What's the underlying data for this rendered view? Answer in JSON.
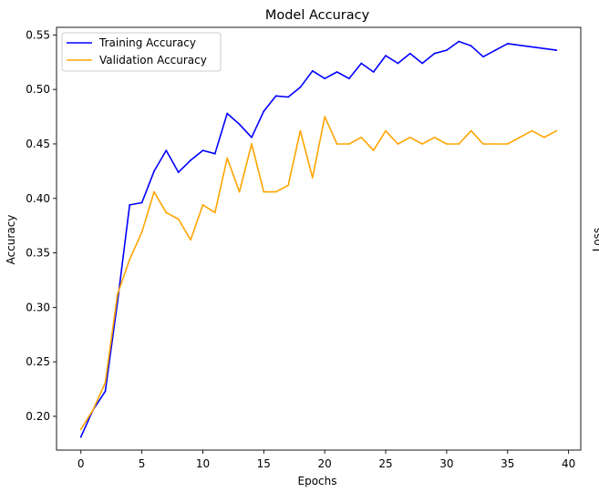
{
  "figure": {
    "cutoff_label": "Loss"
  },
  "chart_data": {
    "type": "line",
    "title": "Model Accuracy",
    "xlabel": "Epochs",
    "ylabel": "Accuracy",
    "xlim": [
      -2,
      41
    ],
    "ylim": [
      0.169,
      0.557
    ],
    "xticks": [
      0,
      5,
      10,
      15,
      20,
      25,
      30,
      35,
      40
    ],
    "yticks": [
      0.2,
      0.25,
      0.3,
      0.35,
      0.4,
      0.45,
      0.5,
      0.55
    ],
    "ytick_labels": [
      "0.20",
      "0.25",
      "0.30",
      "0.35",
      "0.40",
      "0.45",
      "0.50",
      "0.55"
    ],
    "grid": false,
    "legend_position": "top-left",
    "series": [
      {
        "name": "Training Accuracy",
        "color": "#0000ff",
        "x": [
          0,
          1,
          2,
          3,
          4,
          5,
          6,
          7,
          8,
          9,
          10,
          11,
          12,
          13,
          14,
          15,
          16,
          17,
          18,
          19,
          20,
          21,
          22,
          23,
          24,
          25,
          26,
          27,
          28,
          29,
          30,
          31,
          32,
          33,
          34,
          35,
          39
        ],
        "y": [
          0.181,
          0.206,
          0.223,
          0.305,
          0.394,
          0.396,
          0.425,
          0.444,
          0.424,
          0.435,
          0.444,
          0.441,
          0.478,
          0.468,
          0.456,
          0.48,
          0.494,
          0.493,
          0.502,
          0.517,
          0.51,
          0.516,
          0.51,
          0.524,
          0.516,
          0.531,
          0.524,
          0.533,
          0.524,
          0.533,
          0.536,
          0.544,
          0.54,
          0.53,
          0.536,
          0.542,
          0.536
        ]
      },
      {
        "name": "Validation Accuracy",
        "color": "#ffa500",
        "x": [
          0,
          1,
          2,
          3,
          4,
          5,
          6,
          7,
          8,
          9,
          10,
          11,
          12,
          13,
          14,
          15,
          16,
          17,
          18,
          19,
          20,
          21,
          22,
          23,
          24,
          25,
          26,
          27,
          28,
          29,
          30,
          31,
          32,
          33,
          34,
          35,
          36,
          37,
          38,
          39
        ],
        "y": [
          0.188,
          0.206,
          0.231,
          0.312,
          0.344,
          0.369,
          0.406,
          0.387,
          0.381,
          0.362,
          0.394,
          0.387,
          0.437,
          0.406,
          0.45,
          0.406,
          0.406,
          0.412,
          0.462,
          0.419,
          0.475,
          0.45,
          0.45,
          0.456,
          0.444,
          0.462,
          0.45,
          0.456,
          0.45,
          0.456,
          0.45,
          0.45,
          0.462,
          0.45,
          0.45,
          0.45,
          0.456,
          0.462,
          0.456,
          0.462
        ]
      }
    ]
  }
}
